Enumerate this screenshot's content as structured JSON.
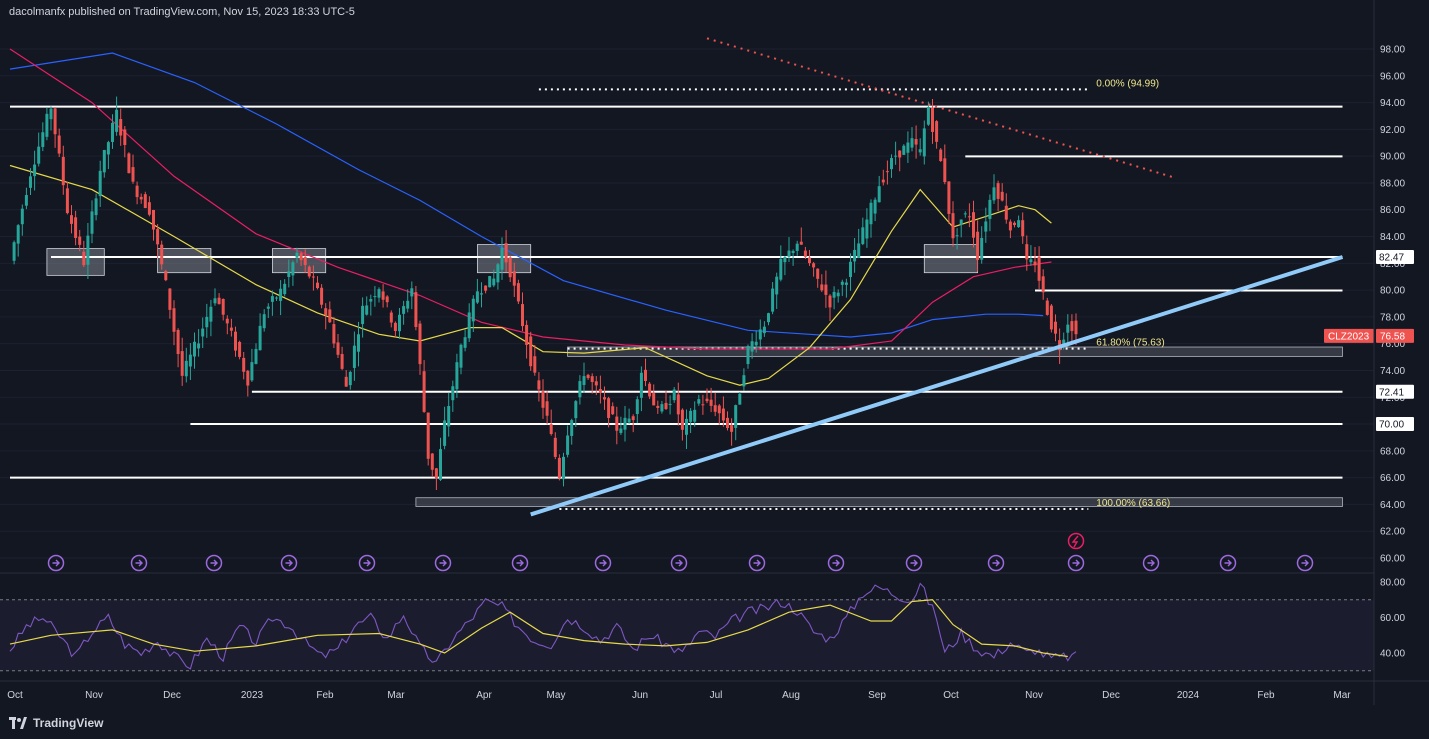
{
  "header": {
    "published": "dacolmanfx published on TradingView.com, Nov 15, 2023 18:33 UTC-5"
  },
  "footer": {
    "brand": "TradingView"
  },
  "colors": {
    "background": "#131722",
    "up": "#26a69a",
    "down": "#ef5350",
    "sma_short": "#e6d94a",
    "sma_mid": "#e91e63",
    "sma_long": "#2962ff",
    "trendline": "#90caf9",
    "resistance_dotted": "#ef5350",
    "rsi": "#7e57c2",
    "rsi_ma": "#e6d94a"
  },
  "chart_data": [
    {
      "type": "candlestick",
      "symbol_tag": "CLZ2023",
      "last_price": "76.58",
      "y_ticks": [
        "98.00",
        "96.00",
        "94.00",
        "92.00",
        "90.00",
        "88.00",
        "86.00",
        "84.00",
        "82.00",
        "80.00",
        "78.00",
        "76.00",
        "74.00",
        "72.00",
        "70.00",
        "68.00",
        "66.00",
        "64.00",
        "62.00",
        "60.00"
      ],
      "ylim": [
        59.3,
        99.6
      ],
      "x_ticks": [
        "Oct",
        "Nov",
        "Dec",
        "2023",
        "Feb",
        "Mar",
        "Apr",
        "May",
        "Jun",
        "Jul",
        "Aug",
        "Sep",
        "Oct",
        "Nov",
        "Dec",
        "2024",
        "Feb",
        "Mar"
      ],
      "price_path": [
        [
          0,
          82.2
        ],
        [
          5,
          88.8
        ],
        [
          10,
          93.7
        ],
        [
          14,
          86.0
        ],
        [
          18,
          82.1
        ],
        [
          22,
          89.0
        ],
        [
          26,
          93.2
        ],
        [
          30,
          87.8
        ],
        [
          34,
          86.0
        ],
        [
          38,
          80.4
        ],
        [
          42,
          73.6
        ],
        [
          46,
          76.4
        ],
        [
          50,
          79.7
        ],
        [
          54,
          76.6
        ],
        [
          58,
          73.3
        ],
        [
          62,
          78.4
        ],
        [
          66,
          79.9
        ],
        [
          70,
          82.7
        ],
        [
          74,
          80.6
        ],
        [
          78,
          77.5
        ],
        [
          82,
          72.8
        ],
        [
          86,
          78.6
        ],
        [
          90,
          80.3
        ],
        [
          94,
          77.1
        ],
        [
          98,
          80.2
        ],
        [
          100,
          74.3
        ],
        [
          102,
          67.6
        ],
        [
          104,
          65.9
        ],
        [
          106,
          70.0
        ],
        [
          110,
          75.8
        ],
        [
          114,
          80.0
        ],
        [
          118,
          80.8
        ],
        [
          120,
          83.1
        ],
        [
          122,
          81.4
        ],
        [
          125,
          77.5
        ],
        [
          128,
          73.4
        ],
        [
          131,
          70.4
        ],
        [
          134,
          66.2
        ],
        [
          136,
          69.5
        ],
        [
          140,
          73.9
        ],
        [
          144,
          72.1
        ],
        [
          148,
          69.7
        ],
        [
          152,
          70.6
        ],
        [
          154,
          74.0
        ],
        [
          158,
          70.8
        ],
        [
          162,
          72.2
        ],
        [
          164,
          69.4
        ],
        [
          168,
          71.8
        ],
        [
          172,
          71.2
        ],
        [
          176,
          69.5
        ],
        [
          180,
          75.6
        ],
        [
          184,
          77.5
        ],
        [
          188,
          81.9
        ],
        [
          192,
          83.6
        ],
        [
          196,
          81.3
        ],
        [
          200,
          79.1
        ],
        [
          204,
          81.0
        ],
        [
          208,
          84.3
        ],
        [
          212,
          87.9
        ],
        [
          216,
          90.1
        ],
        [
          220,
          91.0
        ],
        [
          222,
          90.3
        ],
        [
          224,
          93.7
        ],
        [
          226,
          90.8
        ],
        [
          228,
          88.3
        ],
        [
          230,
          83.6
        ],
        [
          232,
          85.3
        ],
        [
          234,
          85.7
        ],
        [
          236,
          82.6
        ],
        [
          238,
          85.4
        ],
        [
          240,
          88.0
        ],
        [
          242,
          86.5
        ],
        [
          244,
          84.6
        ],
        [
          246,
          85.5
        ],
        [
          248,
          81.9
        ],
        [
          250,
          82.1
        ],
        [
          252,
          79.6
        ],
        [
          254,
          77.4
        ],
        [
          256,
          75.8
        ],
        [
          258,
          77.7
        ],
        [
          259,
          77.3
        ],
        [
          260,
          76.6
        ]
      ],
      "sma_short_path": [
        [
          0,
          89.3
        ],
        [
          20,
          87.5
        ],
        [
          40,
          84.0
        ],
        [
          60,
          80.4
        ],
        [
          75,
          78.3
        ],
        [
          90,
          76.7
        ],
        [
          100,
          76.2
        ],
        [
          112,
          77.2
        ],
        [
          120,
          77.2
        ],
        [
          130,
          75.4
        ],
        [
          140,
          75.3
        ],
        [
          155,
          75.7
        ],
        [
          170,
          73.6
        ],
        [
          178,
          72.9
        ],
        [
          185,
          73.4
        ],
        [
          195,
          75.7
        ],
        [
          205,
          79.3
        ],
        [
          215,
          84.4
        ],
        [
          222,
          87.5
        ],
        [
          230,
          84.7
        ],
        [
          240,
          85.7
        ],
        [
          246,
          86.3
        ],
        [
          250,
          86.0
        ],
        [
          254,
          85.0
        ]
      ],
      "sma_mid_path": [
        [
          0,
          98.0
        ],
        [
          20,
          94.0
        ],
        [
          40,
          88.5
        ],
        [
          60,
          84.2
        ],
        [
          80,
          81.7
        ],
        [
          100,
          79.6
        ],
        [
          115,
          77.6
        ],
        [
          130,
          76.5
        ],
        [
          150,
          75.9
        ],
        [
          170,
          75.6
        ],
        [
          185,
          75.6
        ],
        [
          200,
          75.6
        ],
        [
          215,
          76.2
        ],
        [
          225,
          79.1
        ],
        [
          235,
          81.0
        ],
        [
          245,
          81.7
        ],
        [
          254,
          82.1
        ]
      ],
      "sma_long_path": [
        [
          0,
          96.5
        ],
        [
          25,
          97.7
        ],
        [
          45,
          95.5
        ],
        [
          65,
          92.4
        ],
        [
          85,
          89.0
        ],
        [
          100,
          86.7
        ],
        [
          115,
          84.0
        ],
        [
          135,
          80.7
        ],
        [
          160,
          78.5
        ],
        [
          180,
          77.0
        ],
        [
          195,
          76.7
        ],
        [
          205,
          76.5
        ],
        [
          215,
          76.8
        ],
        [
          225,
          77.8
        ],
        [
          238,
          78.2
        ],
        [
          246,
          78.2
        ],
        [
          252,
          78.1
        ]
      ],
      "levels": [
        {
          "value": 93.7,
          "x_from": 0,
          "x_to": 325,
          "label": ""
        },
        {
          "value": 89.98,
          "x_from": 233,
          "x_to": 325,
          "label": ""
        },
        {
          "value": 82.47,
          "x_from": 10,
          "x_to": 325,
          "label": "82.47"
        },
        {
          "value": 79.97,
          "x_from": 250,
          "x_to": 325,
          "label": ""
        },
        {
          "value": 72.41,
          "x_from": 59,
          "x_to": 325,
          "label": "72.41"
        },
        {
          "value": 70.0,
          "x_from": 44,
          "x_to": 325,
          "label": "70.00"
        },
        {
          "value": 66.0,
          "x_from": 0,
          "x_to": 325,
          "label": ""
        }
      ],
      "zones": [
        {
          "low": 75.05,
          "high": 75.75,
          "x_from": 136,
          "x_to": 325
        },
        {
          "low": 63.85,
          "high": 64.5,
          "x_from": 99,
          "x_to": 325
        }
      ],
      "boxes": [
        {
          "low": 81.1,
          "high": 83.1,
          "x_from": 9,
          "x_to": 23
        },
        {
          "low": 81.3,
          "high": 83.1,
          "x_from": 36,
          "x_to": 49
        },
        {
          "low": 81.3,
          "high": 83.1,
          "x_from": 64,
          "x_to": 77
        },
        {
          "low": 81.3,
          "high": 83.4,
          "x_from": 114,
          "x_to": 127
        },
        {
          "low": 81.3,
          "high": 83.4,
          "x_from": 223,
          "x_to": 236
        }
      ],
      "fib_lines": [
        {
          "value": 94.99,
          "x_from": 129,
          "x_to": 263,
          "label": "0.00% (94.99)"
        },
        {
          "value": 75.63,
          "x_from": 136,
          "x_to": 263,
          "label": "61.80% (75.63)"
        },
        {
          "value": 63.66,
          "x_from": 134,
          "x_to": 263,
          "label": "100.00% (63.66)"
        }
      ],
      "trendline": {
        "from": [
          127,
          63.25
        ],
        "to": [
          325,
          82.47
        ]
      },
      "resistance_dotted": {
        "from": [
          170,
          98.8
        ],
        "to": [
          284,
          88.4
        ]
      },
      "price_label_xcoord": 262
    },
    {
      "type": "line",
      "panel": "RSI",
      "y_ticks": [
        "80.00",
        "60.00",
        "40.00"
      ],
      "ylim": [
        30,
        84
      ],
      "bands": [
        30,
        70
      ],
      "rsi_path": [
        [
          0,
          42
        ],
        [
          4,
          55
        ],
        [
          8,
          60
        ],
        [
          12,
          50
        ],
        [
          16,
          38
        ],
        [
          20,
          52
        ],
        [
          24,
          60
        ],
        [
          28,
          45
        ],
        [
          32,
          40
        ],
        [
          36,
          47
        ],
        [
          40,
          38
        ],
        [
          44,
          33
        ],
        [
          48,
          48
        ],
        [
          52,
          38
        ],
        [
          56,
          55
        ],
        [
          60,
          46
        ],
        [
          64,
          60
        ],
        [
          68,
          56
        ],
        [
          72,
          46
        ],
        [
          76,
          38
        ],
        [
          80,
          42
        ],
        [
          84,
          55
        ],
        [
          88,
          60
        ],
        [
          92,
          48
        ],
        [
          96,
          62
        ],
        [
          100,
          43
        ],
        [
          104,
          34
        ],
        [
          108,
          48
        ],
        [
          112,
          58
        ],
        [
          116,
          69
        ],
        [
          120,
          66
        ],
        [
          124,
          55
        ],
        [
          128,
          47
        ],
        [
          132,
          45
        ],
        [
          136,
          60
        ],
        [
          140,
          55
        ],
        [
          144,
          47
        ],
        [
          148,
          55
        ],
        [
          152,
          42
        ],
        [
          156,
          50
        ],
        [
          160,
          45
        ],
        [
          164,
          40
        ],
        [
          168,
          52
        ],
        [
          172,
          49
        ],
        [
          176,
          58
        ],
        [
          180,
          63
        ],
        [
          184,
          65
        ],
        [
          188,
          69
        ],
        [
          192,
          64
        ],
        [
          196,
          52
        ],
        [
          200,
          48
        ],
        [
          204,
          60
        ],
        [
          208,
          74
        ],
        [
          212,
          77
        ],
        [
          216,
          73
        ],
        [
          220,
          70
        ],
        [
          222,
          79
        ],
        [
          226,
          60
        ],
        [
          228,
          40
        ],
        [
          232,
          51
        ],
        [
          236,
          42
        ],
        [
          240,
          38
        ],
        [
          244,
          46
        ],
        [
          248,
          40
        ],
        [
          250,
          42
        ],
        [
          254,
          37
        ],
        [
          258,
          38
        ],
        [
          260,
          38
        ]
      ],
      "rsi_ma_path": [
        [
          0,
          45
        ],
        [
          10,
          50
        ],
        [
          25,
          53
        ],
        [
          35,
          45
        ],
        [
          45,
          41
        ],
        [
          60,
          44
        ],
        [
          75,
          50
        ],
        [
          90,
          51
        ],
        [
          100,
          45
        ],
        [
          106,
          40
        ],
        [
          115,
          54
        ],
        [
          122,
          63
        ],
        [
          130,
          51
        ],
        [
          140,
          47
        ],
        [
          150,
          45
        ],
        [
          160,
          44
        ],
        [
          170,
          46
        ],
        [
          180,
          53
        ],
        [
          190,
          63
        ],
        [
          200,
          67
        ],
        [
          210,
          58
        ],
        [
          215,
          58
        ],
        [
          220,
          69
        ],
        [
          225,
          70
        ],
        [
          230,
          56
        ],
        [
          237,
          45
        ],
        [
          245,
          44
        ],
        [
          252,
          40
        ],
        [
          258,
          38
        ]
      ]
    }
  ]
}
